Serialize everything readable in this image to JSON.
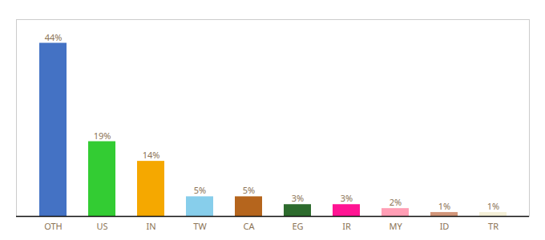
{
  "chart_data": {
    "type": "bar",
    "categories": [
      "OTH",
      "US",
      "IN",
      "TW",
      "CA",
      "EG",
      "IR",
      "MY",
      "ID",
      "TR"
    ],
    "values": [
      44,
      19,
      14,
      5,
      5,
      3,
      3,
      2,
      1,
      1
    ],
    "value_labels": [
      "44%",
      "19%",
      "14%",
      "5%",
      "5%",
      "3%",
      "3%",
      "2%",
      "1%",
      "1%"
    ],
    "colors": [
      "#4472c4",
      "#33cc33",
      "#f5a800",
      "#87ceeb",
      "#b5651d",
      "#2d6b2d",
      "#ff1493",
      "#ff9eb5",
      "#d2967a",
      "#f5f0d8"
    ],
    "data_labels": true,
    "ylim": [
      0,
      50
    ],
    "tick_labels": "x",
    "grid": false
  }
}
